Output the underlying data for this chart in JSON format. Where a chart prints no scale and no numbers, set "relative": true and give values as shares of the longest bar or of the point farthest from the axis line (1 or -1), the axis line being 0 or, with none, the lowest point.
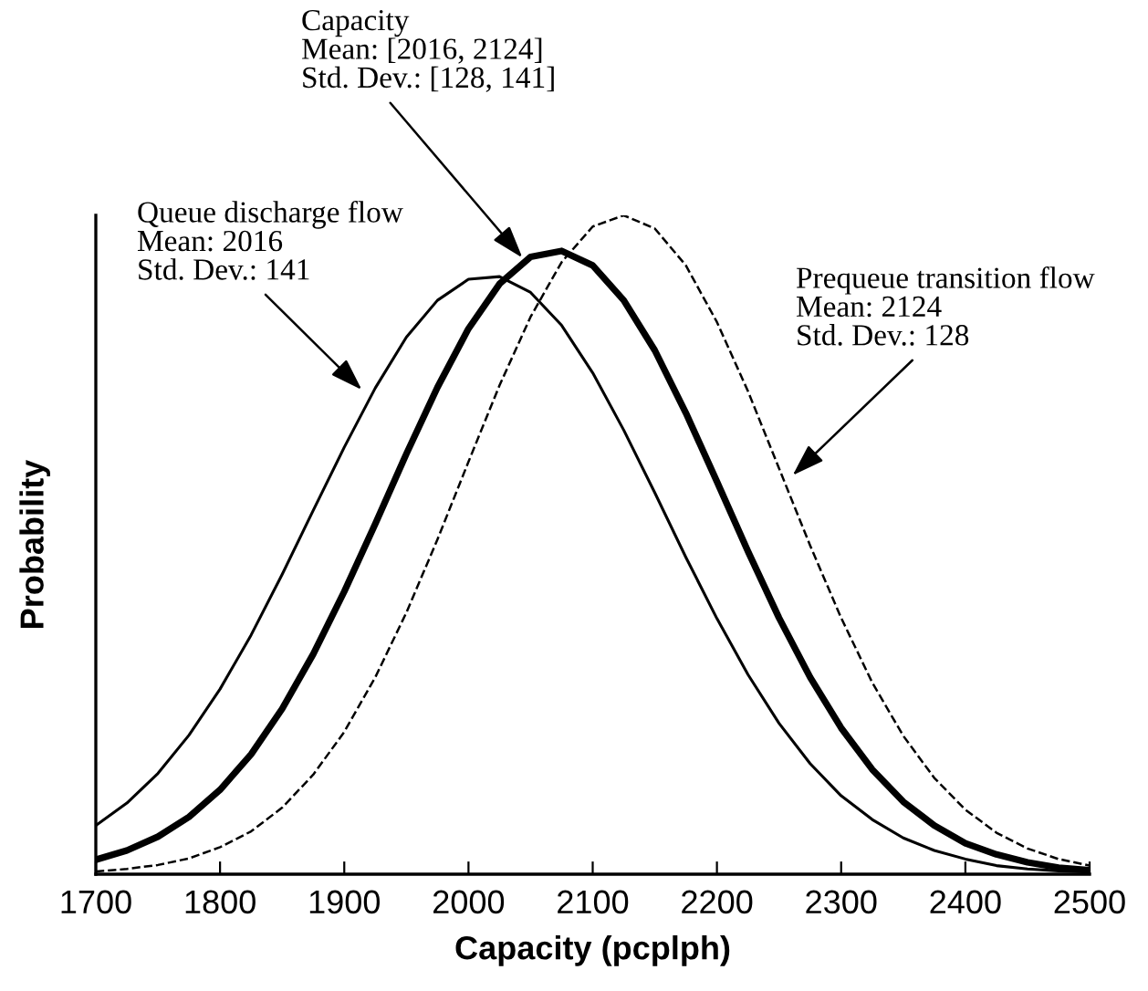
{
  "chart_data": {
    "type": "line",
    "xlabel": "Capacity (pcplph)",
    "ylabel": "Probability",
    "relative": true,
    "x": [
      1700,
      1725,
      1750,
      1775,
      1800,
      1825,
      1850,
      1875,
      1900,
      1925,
      1950,
      1975,
      2000,
      2025,
      2050,
      2075,
      2100,
      2125,
      2150,
      2175,
      2200,
      2225,
      2250,
      2275,
      2300,
      2325,
      2350,
      2375,
      2400,
      2425,
      2450,
      2475,
      2500
    ],
    "xlim": [
      1700,
      2500
    ],
    "xticks": [
      1700,
      1800,
      1900,
      2000,
      2100,
      2200,
      2300,
      2400,
      2500
    ],
    "tick_labels": "x",
    "grid": false,
    "legend": false,
    "marker": "none",
    "series": [
      {
        "color": "#000000",
        "line_style": "solid",
        "values": [
          0.074,
          0.108,
          0.153,
          0.211,
          0.281,
          0.363,
          0.455,
          0.552,
          0.648,
          0.738,
          0.815,
          0.871,
          0.903,
          0.907,
          0.883,
          0.833,
          0.761,
          0.674,
          0.579,
          0.481,
          0.388,
          0.303,
          0.229,
          0.168,
          0.119,
          0.083,
          0.055,
          0.036,
          0.023,
          0.013,
          0.008,
          0.005,
          0.003
        ]
      },
      {
        "color": "#000000",
        "line_style": "solid",
        "values": [
          0.022,
          0.036,
          0.057,
          0.087,
          0.128,
          0.182,
          0.251,
          0.334,
          0.429,
          0.532,
          0.638,
          0.739,
          0.828,
          0.896,
          0.937,
          0.946,
          0.924,
          0.871,
          0.795,
          0.7,
          0.596,
          0.49,
          0.389,
          0.299,
          0.222,
          0.159,
          0.11,
          0.074,
          0.047,
          0.03,
          0.018,
          0.01,
          0.006
        ]
      },
      {
        "color": "#000000",
        "line_style": "dashed",
        "values": [
          0.004,
          0.008,
          0.014,
          0.024,
          0.041,
          0.065,
          0.101,
          0.151,
          0.216,
          0.299,
          0.397,
          0.508,
          0.626,
          0.742,
          0.846,
          0.929,
          0.983,
          1.0,
          0.98,
          0.924,
          0.838,
          0.733,
          0.616,
          0.499,
          0.389,
          0.291,
          0.21,
          0.146,
          0.098,
          0.063,
          0.039,
          0.023,
          0.013
        ]
      }
    ],
    "annotations": [
      {
        "text": "Capacity\nMean: [2016, 2124]\nStd. Dev.: [128, 141]",
        "x": 2046,
        "y": 0.93
      },
      {
        "text": "Queue discharge flow\nMean: 2016\nStd. Dev.: 141",
        "x": 1917,
        "y": 0.73
      },
      {
        "text": "Prequeue transition flow\nMean: 2124\nStd. Dev.: 128",
        "x": 2258,
        "y": 0.6
      }
    ]
  }
}
